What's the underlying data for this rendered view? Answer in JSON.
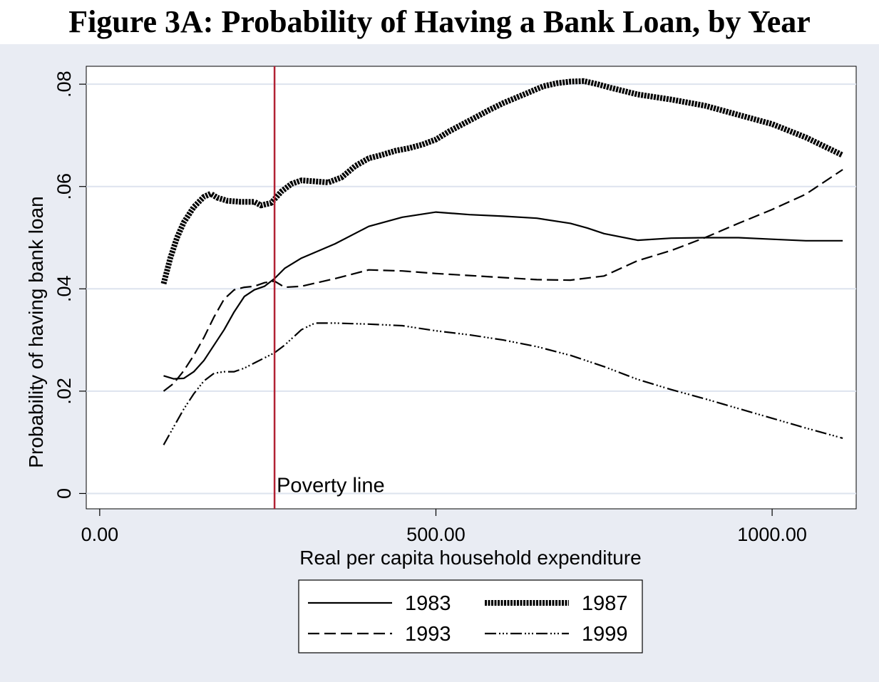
{
  "title": "Figure 3A: Probability of Having a Bank Loan, by Year",
  "chart_data": {
    "type": "line",
    "title": "Figure 3A: Probability of Having a Bank Loan, by Year",
    "xlabel": "Real per capita household expenditure",
    "ylabel": "Probability of having bank loan",
    "xlim": [
      -20,
      1125
    ],
    "ylim": [
      -0.003,
      0.0835
    ],
    "xticks": [
      {
        "value": 0,
        "label": "0.00"
      },
      {
        "value": 500,
        "label": "500.00"
      },
      {
        "value": 1000,
        "label": "1000.00"
      }
    ],
    "yticks": [
      {
        "value": 0,
        "label": "0"
      },
      {
        "value": 0.02,
        "label": ".02"
      },
      {
        "value": 0.04,
        "label": ".04"
      },
      {
        "value": 0.06,
        "label": ".06"
      },
      {
        "value": 0.08,
        "label": ".08"
      }
    ],
    "grid": true,
    "legend_position": "bottom",
    "annotation": {
      "label": "Poverty line",
      "x": 260
    },
    "series": [
      {
        "name": "1983",
        "style": "solid",
        "x": [
          95,
          110,
          125,
          140,
          155,
          170,
          185,
          200,
          215,
          230,
          245,
          260,
          275,
          300,
          350,
          400,
          450,
          500,
          550,
          600,
          650,
          700,
          725,
          750,
          800,
          850,
          900,
          950,
          1000,
          1050,
          1105
        ],
        "y": [
          0.023,
          0.0224,
          0.0225,
          0.0238,
          0.026,
          0.029,
          0.032,
          0.0355,
          0.0385,
          0.0398,
          0.0405,
          0.042,
          0.044,
          0.046,
          0.0488,
          0.0522,
          0.054,
          0.055,
          0.0545,
          0.0542,
          0.0538,
          0.0528,
          0.0519,
          0.0508,
          0.0495,
          0.0499,
          0.05,
          0.05,
          0.0497,
          0.0494,
          0.0494
        ]
      },
      {
        "name": "1987",
        "style": "thick",
        "x": [
          95,
          105,
          115,
          125,
          140,
          155,
          165,
          175,
          190,
          210,
          230,
          240,
          255,
          270,
          285,
          300,
          320,
          340,
          360,
          380,
          400,
          420,
          440,
          460,
          480,
          500,
          520,
          540,
          560,
          580,
          600,
          620,
          640,
          660,
          680,
          700,
          720,
          740,
          760,
          800,
          850,
          900,
          950,
          1000,
          1050,
          1105
        ],
        "y": [
          0.041,
          0.046,
          0.05,
          0.053,
          0.056,
          0.058,
          0.0586,
          0.0578,
          0.0572,
          0.057,
          0.057,
          0.0563,
          0.0568,
          0.059,
          0.0605,
          0.0612,
          0.061,
          0.0608,
          0.0618,
          0.064,
          0.0655,
          0.0662,
          0.067,
          0.0675,
          0.0682,
          0.0692,
          0.0708,
          0.0722,
          0.0736,
          0.075,
          0.0763,
          0.0774,
          0.0785,
          0.0796,
          0.0802,
          0.0805,
          0.0806,
          0.08,
          0.0793,
          0.078,
          0.077,
          0.0758,
          0.074,
          0.0722,
          0.0696,
          0.0661
        ]
      },
      {
        "name": "1993",
        "style": "dashed",
        "x": [
          95,
          110,
          125,
          140,
          155,
          170,
          185,
          200,
          215,
          230,
          245,
          260,
          275,
          300,
          350,
          400,
          450,
          500,
          550,
          600,
          650,
          700,
          750,
          800,
          850,
          900,
          950,
          1000,
          1050,
          1105
        ],
        "y": [
          0.02,
          0.0215,
          0.024,
          0.027,
          0.0305,
          0.0345,
          0.038,
          0.0398,
          0.0403,
          0.0405,
          0.0412,
          0.0415,
          0.0403,
          0.0405,
          0.042,
          0.0437,
          0.0435,
          0.043,
          0.0426,
          0.0422,
          0.0418,
          0.0417,
          0.0425,
          0.0455,
          0.0475,
          0.05,
          0.0528,
          0.0555,
          0.0585,
          0.0633
        ]
      },
      {
        "name": "1999",
        "style": "dashdot",
        "x": [
          95,
          110,
          125,
          140,
          155,
          170,
          185,
          200,
          215,
          230,
          245,
          260,
          275,
          300,
          320,
          350,
          400,
          450,
          500,
          550,
          600,
          650,
          700,
          750,
          800,
          850,
          900,
          950,
          1000,
          1050,
          1105
        ],
        "y": [
          0.0095,
          0.013,
          0.0165,
          0.0195,
          0.022,
          0.0235,
          0.0238,
          0.0238,
          0.0245,
          0.0255,
          0.0265,
          0.0275,
          0.029,
          0.032,
          0.0333,
          0.0333,
          0.0331,
          0.0328,
          0.0318,
          0.031,
          0.03,
          0.0287,
          0.027,
          0.0248,
          0.0223,
          0.0203,
          0.0185,
          0.0166,
          0.0147,
          0.0128,
          0.0108
        ]
      }
    ]
  }
}
